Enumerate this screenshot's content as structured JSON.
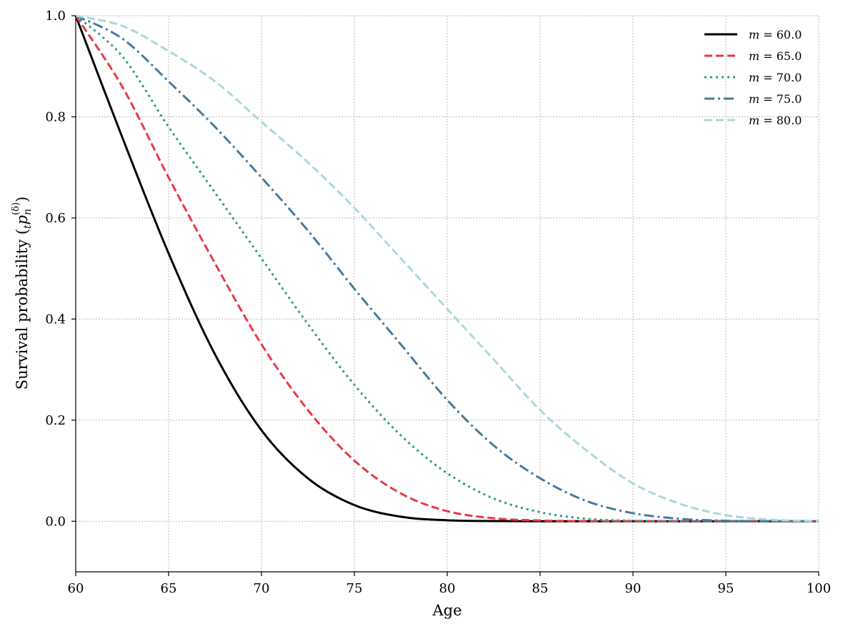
{
  "chart_data": {
    "type": "line",
    "title": "",
    "xlabel": "Age",
    "ylabel": {
      "prefix": "Survival probability (",
      "sub_t": "t",
      "p": "p",
      "sub_n": "n",
      "sup": "(δ)",
      "suffix": ")"
    },
    "xlim": [
      60,
      100
    ],
    "ylim": [
      -0.1,
      1.0
    ],
    "xticks": [
      60,
      65,
      70,
      75,
      80,
      85,
      90,
      95,
      100
    ],
    "xtick_labels": [
      "60",
      "65",
      "70",
      "75",
      "80",
      "85",
      "90",
      "95",
      "100"
    ],
    "yticks": [
      0.0,
      0.2,
      0.4,
      0.6,
      0.8,
      1.0
    ],
    "ytick_labels": [
      "0.0",
      "0.2",
      "0.4",
      "0.6",
      "0.8",
      "1.0"
    ],
    "grid": true,
    "legend_position": "top-right",
    "x": [
      60,
      62.5,
      65,
      67.5,
      70,
      72.5,
      75,
      77.5,
      80,
      82.5,
      85,
      87.5,
      90,
      92.5,
      95,
      97.5,
      100
    ],
    "series": [
      {
        "name": "m = 60.0",
        "label_var": "m",
        "label_eq": " = ",
        "label_val": "60.0",
        "color": "#000000",
        "dash": "solid",
        "values": [
          1.0,
          0.76,
          0.53,
          0.33,
          0.18,
          0.085,
          0.032,
          0.009,
          0.002,
          0.0004,
          0.0001,
          0.0,
          0.0,
          0.0,
          0.0,
          0.0,
          0.0
        ]
      },
      {
        "name": "m = 65.0",
        "label_var": "m",
        "label_eq": " = ",
        "label_val": "65.0",
        "color": "#e63946",
        "dash": "dashed",
        "values": [
          1.0,
          0.86,
          0.68,
          0.51,
          0.35,
          0.22,
          0.12,
          0.055,
          0.02,
          0.006,
          0.0015,
          0.0003,
          0.0,
          0.0,
          0.0,
          0.0,
          0.0
        ]
      },
      {
        "name": "m = 70.0",
        "label_var": "m",
        "label_eq": " = ",
        "label_val": "70.0",
        "color": "#2a9d8f",
        "dash": "dotted",
        "values": [
          1.0,
          0.92,
          0.78,
          0.65,
          0.52,
          0.39,
          0.27,
          0.17,
          0.095,
          0.045,
          0.018,
          0.005,
          0.001,
          0.0003,
          0.0,
          0.0,
          0.0
        ]
      },
      {
        "name": "m = 75.0",
        "label_var": "m",
        "label_eq": " = ",
        "label_val": "75.0",
        "color": "#457b9d",
        "dash": "dashdot",
        "values": [
          1.0,
          0.955,
          0.87,
          0.78,
          0.68,
          0.575,
          0.46,
          0.35,
          0.24,
          0.15,
          0.085,
          0.04,
          0.016,
          0.005,
          0.001,
          0.0002,
          0.0
        ]
      },
      {
        "name": "m = 80.0",
        "label_var": "m",
        "label_eq": " = ",
        "label_val": "80.0",
        "color": "#a8dadc",
        "dash": "dashed",
        "values": [
          1.0,
          0.98,
          0.93,
          0.87,
          0.79,
          0.71,
          0.62,
          0.52,
          0.42,
          0.32,
          0.22,
          0.14,
          0.075,
          0.035,
          0.012,
          0.003,
          0.0
        ]
      }
    ]
  }
}
